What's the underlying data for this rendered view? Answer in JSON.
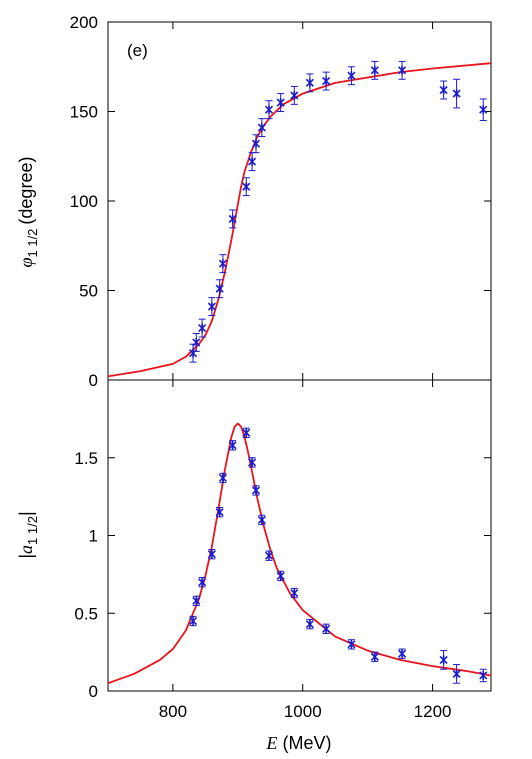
{
  "colors": {
    "fit": "#e8141c",
    "data": "#1a1acc",
    "axis": "#000000"
  },
  "chart_data": [
    {
      "type": "scatter",
      "panel_label": "(e)",
      "ylabel_symbol": "φ",
      "ylabel_subscript": "1 1/2",
      "ylabel_unit": "(degree)",
      "xlim": [
        700,
        1290
      ],
      "ylim": [
        0,
        200
      ],
      "yticks": [
        0,
        50,
        100,
        150,
        200
      ],
      "series": [
        {
          "kind": "points",
          "x": [
            831,
            836,
            845,
            860,
            872,
            877,
            892,
            913,
            922,
            928,
            937,
            948,
            966,
            987,
            1011,
            1036,
            1075,
            1111,
            1153,
            1217,
            1237,
            1278
          ],
          "y": [
            15,
            21,
            29,
            41,
            51,
            65,
            90,
            108,
            122,
            132,
            141,
            151,
            155,
            159,
            166,
            167,
            170,
            173,
            173,
            162,
            160,
            151
          ],
          "err": [
            5,
            5,
            5,
            5,
            5,
            5,
            5,
            5,
            5,
            5,
            5,
            5,
            5,
            5,
            5,
            5,
            5,
            5,
            5,
            5,
            8,
            6
          ]
        },
        {
          "kind": "curve",
          "x": [
            700,
            750,
            800,
            820,
            840,
            850,
            860,
            870,
            880,
            885,
            890,
            895,
            900,
            905,
            910,
            920,
            930,
            940,
            950,
            970,
            1000,
            1050,
            1100,
            1150,
            1200,
            1290
          ],
          "y": [
            2,
            5,
            9,
            13,
            20,
            25,
            33,
            45,
            60,
            69,
            78,
            88,
            98,
            108,
            116,
            127,
            136,
            142,
            147,
            154,
            160,
            166,
            169,
            172,
            174,
            177
          ]
        }
      ]
    },
    {
      "type": "scatter",
      "ylabel_symbol": "a",
      "ylabel_subscript": "1 1/2",
      "xlabel_symbol": "E",
      "xlabel_unit": "(MeV)",
      "xlim": [
        700,
        1290
      ],
      "ylim": [
        0,
        2.0
      ],
      "yticks": [
        0,
        0.5,
        1,
        1.5
      ],
      "ytick_labels": [
        "0",
        "0.5",
        "1",
        "1.5"
      ],
      "xticks": [
        800,
        1000,
        1200
      ],
      "xtick_labels": [
        "800",
        "1000",
        "1200"
      ],
      "series": [
        {
          "kind": "points",
          "x": [
            831,
            836,
            845,
            860,
            872,
            877,
            892,
            913,
            922,
            928,
            937,
            948,
            966,
            987,
            1011,
            1036,
            1075,
            1111,
            1153,
            1217,
            1237,
            1278
          ],
          "y": [
            0.45,
            0.58,
            0.7,
            0.88,
            1.15,
            1.37,
            1.58,
            1.66,
            1.47,
            1.29,
            1.1,
            0.87,
            0.74,
            0.63,
            0.43,
            0.4,
            0.3,
            0.22,
            0.24,
            0.2,
            0.11,
            0.1
          ],
          "err": [
            0.03,
            0.03,
            0.03,
            0.03,
            0.03,
            0.03,
            0.03,
            0.03,
            0.03,
            0.03,
            0.03,
            0.03,
            0.03,
            0.03,
            0.03,
            0.03,
            0.03,
            0.03,
            0.03,
            0.06,
            0.06,
            0.04
          ]
        },
        {
          "kind": "curve",
          "x": [
            700,
            740,
            780,
            800,
            820,
            840,
            850,
            860,
            870,
            880,
            890,
            895,
            900,
            905,
            910,
            915,
            920,
            930,
            940,
            950,
            960,
            980,
            1000,
            1050,
            1100,
            1150,
            1200,
            1250,
            1290
          ],
          "y": [
            0.05,
            0.11,
            0.2,
            0.27,
            0.39,
            0.59,
            0.74,
            0.93,
            1.17,
            1.42,
            1.63,
            1.7,
            1.72,
            1.7,
            1.64,
            1.55,
            1.45,
            1.24,
            1.06,
            0.91,
            0.79,
            0.63,
            0.52,
            0.35,
            0.26,
            0.2,
            0.16,
            0.13,
            0.1
          ]
        }
      ]
    }
  ]
}
